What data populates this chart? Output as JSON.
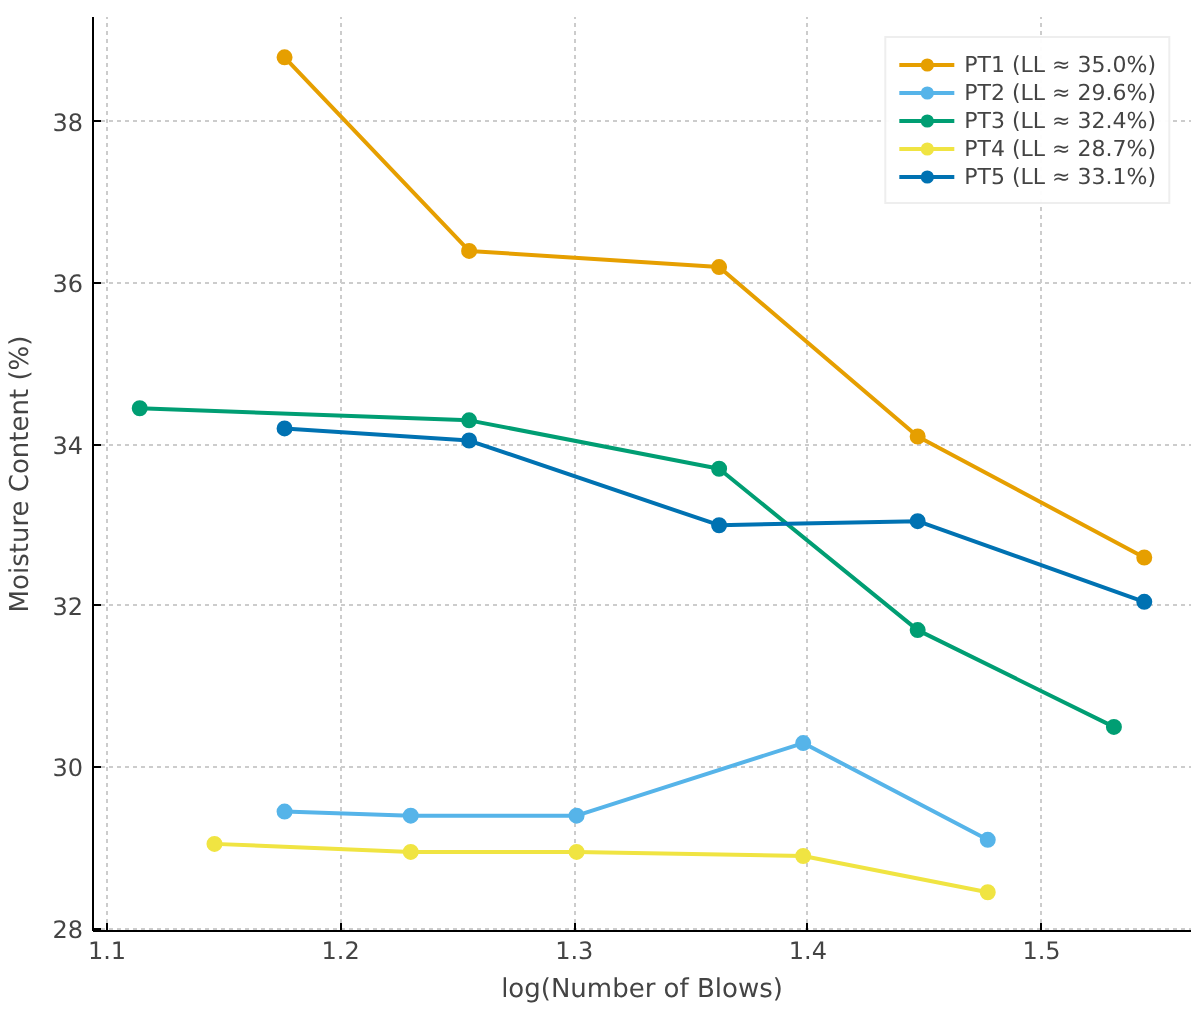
{
  "chart_data": {
    "type": "line",
    "xlabel": "log(Number of Blows)",
    "ylabel": "Moisture Content (%)",
    "xlim": [
      1.094,
      1.564
    ],
    "ylim": [
      27.97,
      39.3
    ],
    "xticks": [
      1.1,
      1.2,
      1.3,
      1.4,
      1.5
    ],
    "yticks": [
      28,
      30,
      32,
      34,
      36,
      38
    ],
    "grid": true,
    "legend": "top right",
    "marker": "circle",
    "line_style": "solid",
    "series": [
      {
        "name": "PT1 (LL ≈ 35.0%)",
        "color": "#e69f00",
        "x": [
          1.176,
          1.255,
          1.362,
          1.447,
          1.544
        ],
        "values": [
          38.8,
          36.4,
          36.2,
          34.1,
          32.6
        ]
      },
      {
        "name": "PT2 (LL ≈ 29.6%)",
        "color": "#56b4e9",
        "x": [
          1.176,
          1.23,
          1.301,
          1.398,
          1.477
        ],
        "values": [
          29.45,
          29.4,
          29.4,
          30.3,
          29.1
        ]
      },
      {
        "name": "PT3 (LL ≈ 32.4%)",
        "color": "#009e73",
        "x": [
          1.114,
          1.255,
          1.362,
          1.447,
          1.531
        ],
        "values": [
          34.45,
          34.3,
          33.7,
          31.7,
          30.5
        ]
      },
      {
        "name": "PT4 (LL ≈ 28.7%)",
        "color": "#f0e442",
        "x": [
          1.146,
          1.23,
          1.301,
          1.398,
          1.477
        ],
        "values": [
          29.05,
          28.95,
          28.95,
          28.9,
          28.45
        ]
      },
      {
        "name": "PT5 (LL ≈ 33.1%)",
        "color": "#0072b2",
        "x": [
          1.176,
          1.255,
          1.362,
          1.447,
          1.544
        ],
        "values": [
          34.2,
          34.05,
          33.0,
          33.05,
          32.05
        ]
      }
    ]
  }
}
